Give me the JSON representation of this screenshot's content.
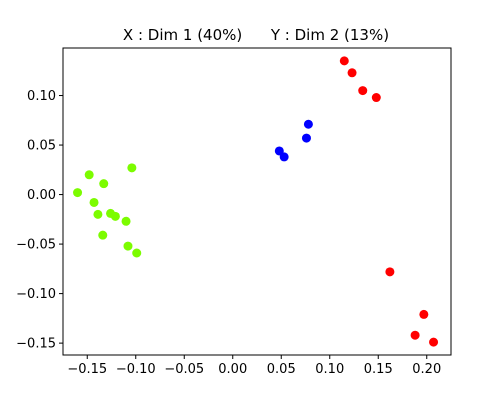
{
  "chart_data": {
    "type": "scatter",
    "title": "X : Dim 1 (40%)      Y : Dim 2 (13%)",
    "xlabel": "",
    "ylabel": "",
    "xlim": [
      -0.175,
      0.225
    ],
    "ylim": [
      -0.162,
      0.148
    ],
    "xticks": [
      -0.15,
      -0.1,
      -0.05,
      0.0,
      0.05,
      0.1,
      0.15,
      0.2
    ],
    "xtick_labels": [
      "−0.15",
      "−0.10",
      "−0.05",
      "0.00",
      "0.05",
      "0.10",
      "0.15",
      "0.20"
    ],
    "yticks": [
      -0.15,
      -0.1,
      -0.05,
      0.0,
      0.05,
      0.1
    ],
    "ytick_labels": [
      "−0.15",
      "−0.10",
      "−0.05",
      "0.00",
      "0.05",
      "0.10"
    ],
    "grid": false,
    "legend": "none",
    "series": [
      {
        "color": "#7cfc00",
        "points": [
          [
            -0.16,
            0.002
          ],
          [
            -0.148,
            0.02
          ],
          [
            -0.133,
            0.011
          ],
          [
            -0.104,
            0.027
          ],
          [
            -0.143,
            -0.008
          ],
          [
            -0.139,
            -0.02
          ],
          [
            -0.126,
            -0.019
          ],
          [
            -0.121,
            -0.022
          ],
          [
            -0.11,
            -0.027
          ],
          [
            -0.134,
            -0.041
          ],
          [
            -0.108,
            -0.052
          ],
          [
            -0.099,
            -0.059
          ]
        ]
      },
      {
        "color": "#0000ff",
        "points": [
          [
            0.048,
            0.044
          ],
          [
            0.053,
            0.038
          ],
          [
            0.076,
            0.057
          ],
          [
            0.078,
            0.071
          ]
        ]
      },
      {
        "color": "#ff0000",
        "points": [
          [
            0.115,
            0.135
          ],
          [
            0.123,
            0.123
          ],
          [
            0.134,
            0.105
          ],
          [
            0.148,
            0.098
          ],
          [
            0.162,
            -0.078
          ],
          [
            0.197,
            -0.121
          ],
          [
            0.188,
            -0.142
          ],
          [
            0.207,
            -0.149
          ]
        ]
      }
    ]
  }
}
